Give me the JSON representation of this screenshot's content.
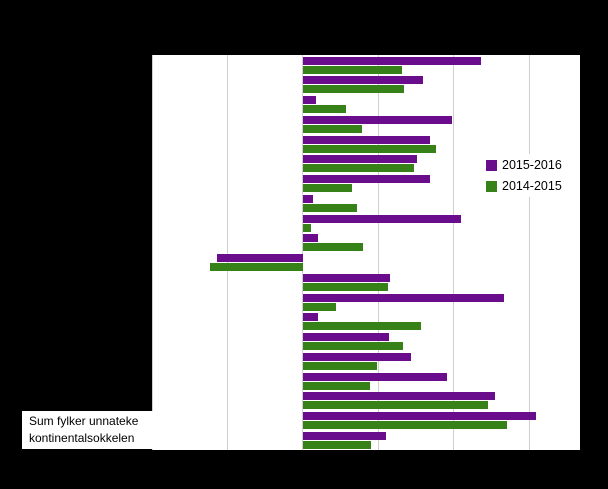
{
  "page": {
    "background_color": "#000000"
  },
  "legend": {
    "items": [
      {
        "label": "2015-2016",
        "color": "#6a0d8c"
      },
      {
        "label": "2014-2015",
        "color": "#378218"
      }
    ]
  },
  "category_label": {
    "line1": "Sum fylker unnateke",
    "line2": "kontinentalsokkelen"
  },
  "chart_data": {
    "type": "bar",
    "orientation": "horizontal",
    "title": "",
    "xlabel": "",
    "ylabel": "",
    "grid": true,
    "legend_position": "inside-right",
    "xlim": [
      -2,
      3.67
    ],
    "gridline_values": [
      -2,
      -1,
      0,
      1,
      2,
      3
    ],
    "categories": [
      "",
      "",
      "",
      "",
      "",
      "",
      "",
      "",
      "",
      "",
      "",
      "",
      "",
      "",
      "",
      "",
      "",
      "",
      "",
      "Sum fylker unnateke kontinentalsokkelen"
    ],
    "series": [
      {
        "name": "2015-2016",
        "color": "#6a0d8c",
        "values": [
          2.36,
          1.59,
          0.17,
          1.97,
          1.68,
          1.51,
          1.68,
          0.13,
          2.09,
          0.2,
          -1.14,
          1.15,
          2.66,
          0.2,
          1.14,
          1.43,
          1.91,
          2.54,
          3.09,
          1.1
        ]
      },
      {
        "name": "2014-2015",
        "color": "#378218",
        "values": [
          1.31,
          1.34,
          0.57,
          0.78,
          1.76,
          1.47,
          0.65,
          0.72,
          0.11,
          0.79,
          -1.23,
          1.13,
          0.44,
          1.56,
          1.32,
          0.98,
          0.89,
          2.45,
          2.7,
          0.9
        ]
      }
    ]
  }
}
